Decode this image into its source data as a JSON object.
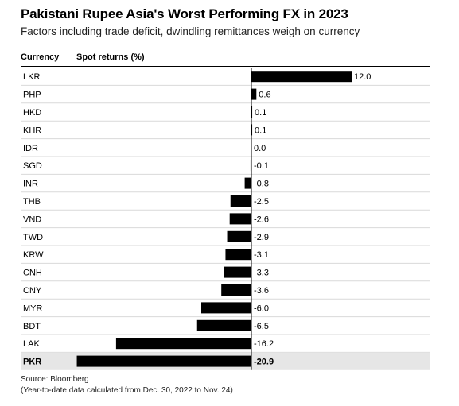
{
  "title": "Pakistani Rupee Asia's Worst Performing FX in 2023",
  "subtitle": "Factors including trade deficit, dwindling remittances weigh on currency",
  "columns": {
    "currency": "Currency",
    "returns": "Spot returns (%)"
  },
  "source": "Source: Bloomberg",
  "note": "(Year-to-date data calculated from Dec. 30, 2022 to Nov. 24)",
  "colors": {
    "bar": "#000000",
    "highlight_row": "#e6e6e6",
    "separator": "#d9d9d9",
    "zero_line": "#000000"
  },
  "chart_data": {
    "type": "bar",
    "orientation": "horizontal",
    "categories": [
      "LKR",
      "PHP",
      "HKD",
      "KHR",
      "IDR",
      "SGD",
      "INR",
      "THB",
      "VND",
      "TWD",
      "KRW",
      "CNH",
      "CNY",
      "MYR",
      "BDT",
      "LAK",
      "PKR"
    ],
    "values": [
      12.0,
      0.6,
      0.1,
      0.1,
      0.0,
      -0.1,
      -0.8,
      -2.5,
      -2.6,
      -2.9,
      -3.1,
      -3.3,
      -3.6,
      -6.0,
      -6.5,
      -16.2,
      -20.9
    ],
    "labels": [
      "12.0",
      "0.6",
      "0.1",
      "0.1",
      "0.0",
      "-0.1",
      "-0.8",
      "-2.5",
      "-2.6",
      "-2.9",
      "-3.1",
      "-3.3",
      "-3.6",
      "-6.0",
      "-6.5",
      "-16.2",
      "-20.9"
    ],
    "highlight": "PKR",
    "xlim": [
      -20.9,
      12.0
    ]
  }
}
